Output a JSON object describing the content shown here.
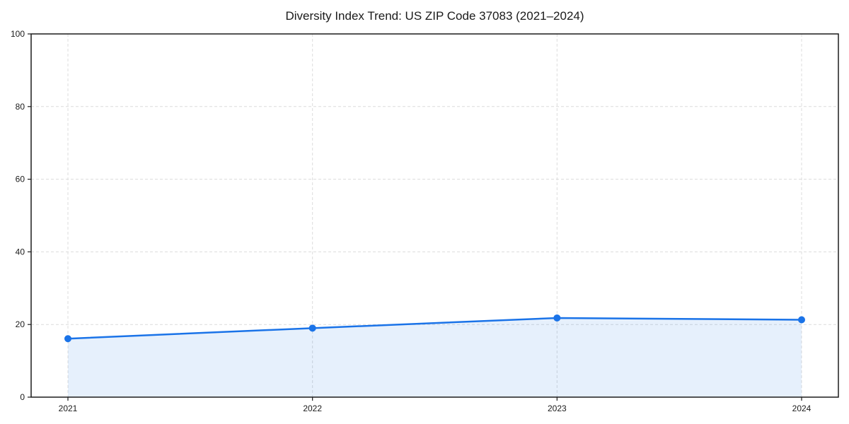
{
  "title": "Diversity Index Trend: US ZIP Code 37083 (2021–2024)",
  "chart_data": {
    "type": "area",
    "title": "Diversity Index Trend: US ZIP Code 37083 (2021–2024)",
    "categories": [
      "2021",
      "2022",
      "2023",
      "2024"
    ],
    "series": [
      {
        "name": "Diversity Index",
        "values": [
          16.1,
          19.0,
          21.8,
          21.3
        ]
      }
    ],
    "xlabel": "",
    "ylabel": "",
    "ylim": [
      0,
      100
    ],
    "yticks": [
      0,
      20,
      40,
      60,
      80,
      100
    ],
    "grid": true,
    "grid_style": "dashed",
    "legend_position": "none",
    "marker": "circle",
    "colors": {
      "line": "#1a73e8",
      "marker": "#1a73e8",
      "fill": "#1a73e8",
      "fill_opacity": 0.11,
      "grid": "#dcdcdc",
      "axis": "#1c1c1c",
      "text": "#1a1a1a",
      "background": "#ffffff"
    }
  }
}
